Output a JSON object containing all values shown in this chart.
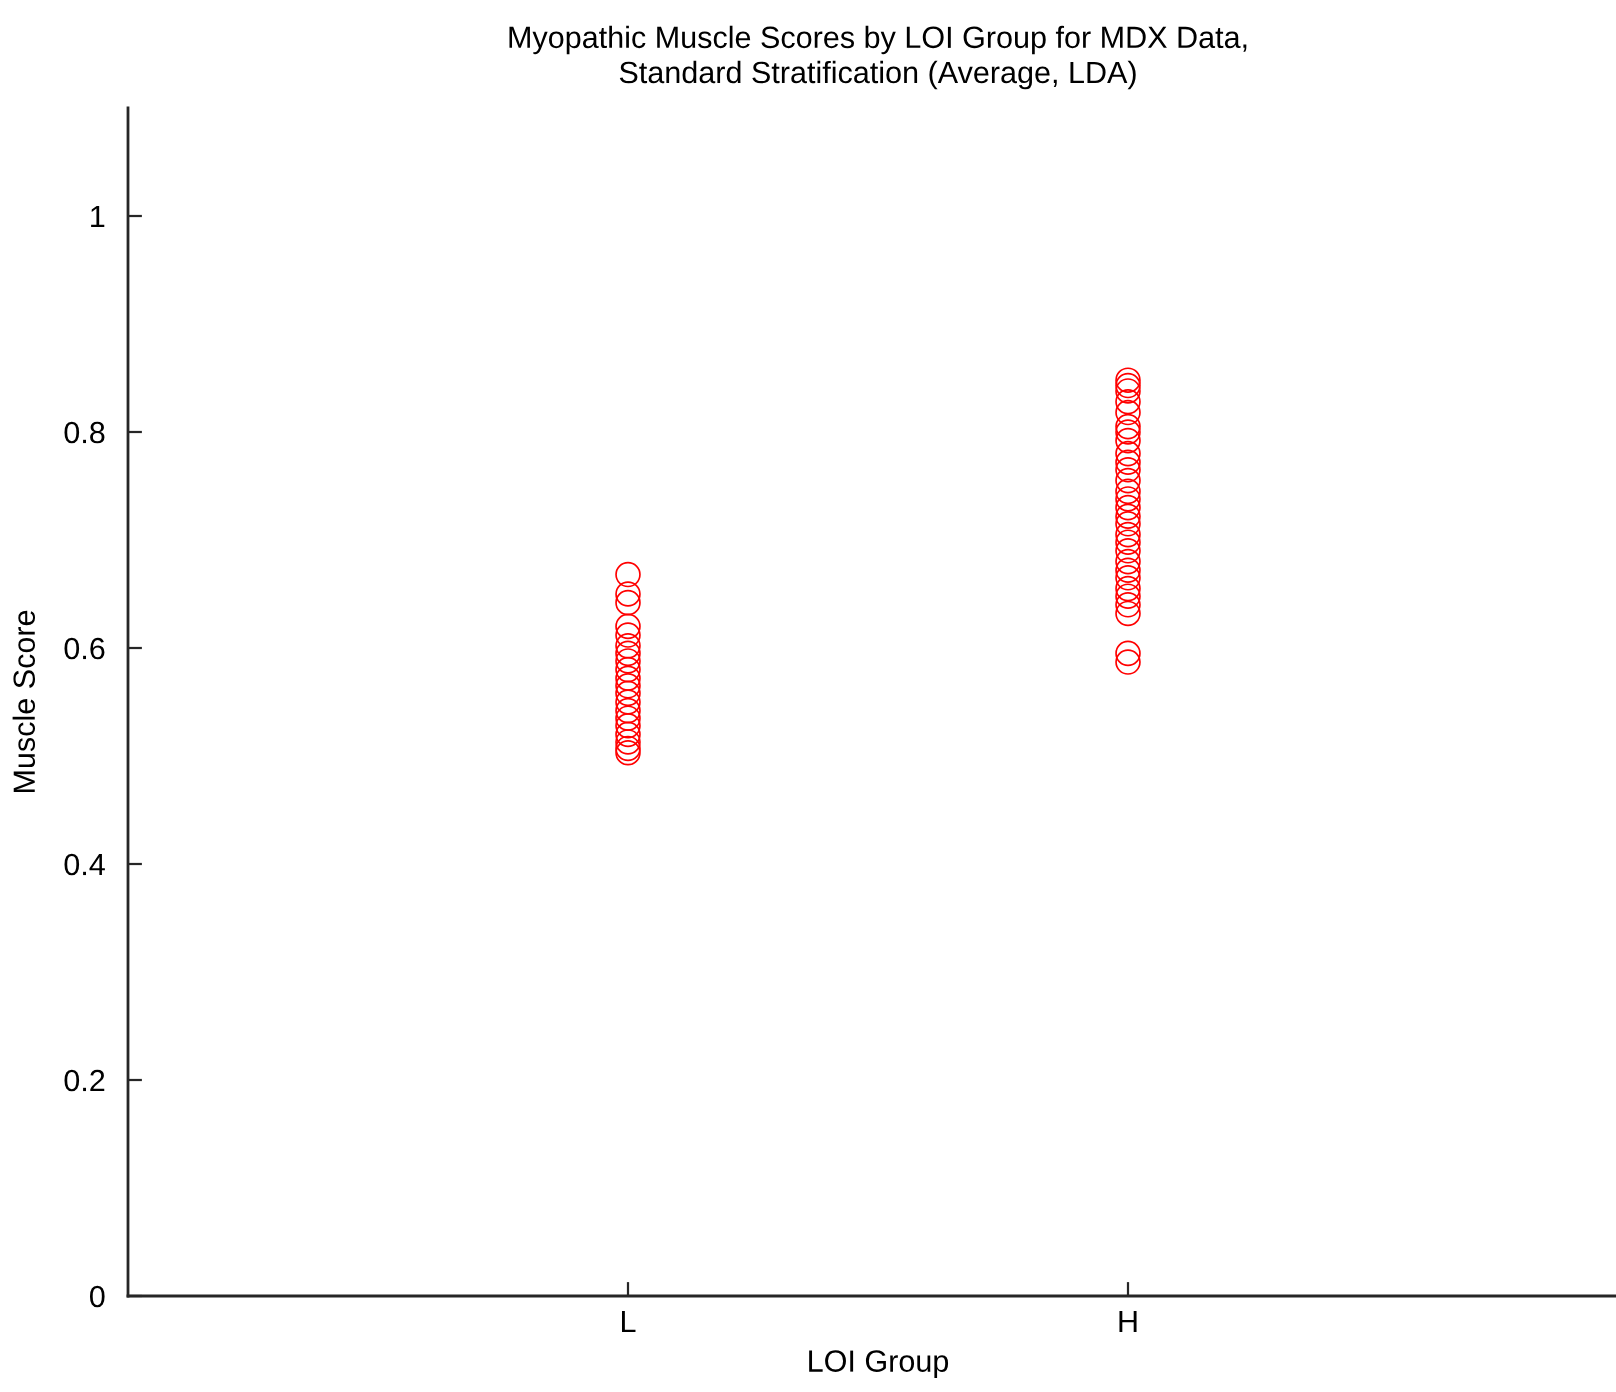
{
  "chart_data": {
    "type": "scatter",
    "title": "Myopathic Muscle Scores by LOI Group for MDX Data,\nStandard Stratification (Average, LDA)",
    "xlabel": "LOI Group",
    "ylabel": "Muscle Score",
    "categories": [
      "L",
      "H"
    ],
    "series": [
      {
        "color": "#ff0000",
        "x": [
          "L",
          "L",
          "L",
          "L",
          "L",
          "L",
          "L",
          "L",
          "L",
          "L",
          "L",
          "L",
          "L",
          "L",
          "L",
          "L",
          "L",
          "L",
          "L",
          "L",
          "H",
          "H",
          "H",
          "H",
          "H",
          "H",
          "H",
          "H",
          "H",
          "H",
          "H",
          "H",
          "H",
          "H",
          "H",
          "H",
          "H",
          "H",
          "H",
          "H",
          "H",
          "H",
          "H",
          "H",
          "H",
          "H",
          "H",
          "H",
          "H"
        ],
        "values": [
          0.668,
          0.65,
          0.642,
          0.62,
          0.612,
          0.602,
          0.595,
          0.588,
          0.58,
          0.572,
          0.565,
          0.558,
          0.55,
          0.542,
          0.535,
          0.528,
          0.52,
          0.513,
          0.507,
          0.503,
          0.848,
          0.843,
          0.838,
          0.828,
          0.818,
          0.805,
          0.8,
          0.792,
          0.78,
          0.772,
          0.765,
          0.755,
          0.745,
          0.738,
          0.73,
          0.722,
          0.715,
          0.705,
          0.698,
          0.69,
          0.68,
          0.672,
          0.665,
          0.655,
          0.648,
          0.64,
          0.632,
          0.595,
          0.587
        ]
      }
    ],
    "ylim": [
      0,
      1.1
    ],
    "yticks": [
      0,
      0.2,
      0.4,
      0.6,
      0.8,
      1
    ],
    "marker": "circle",
    "grid": false
  }
}
